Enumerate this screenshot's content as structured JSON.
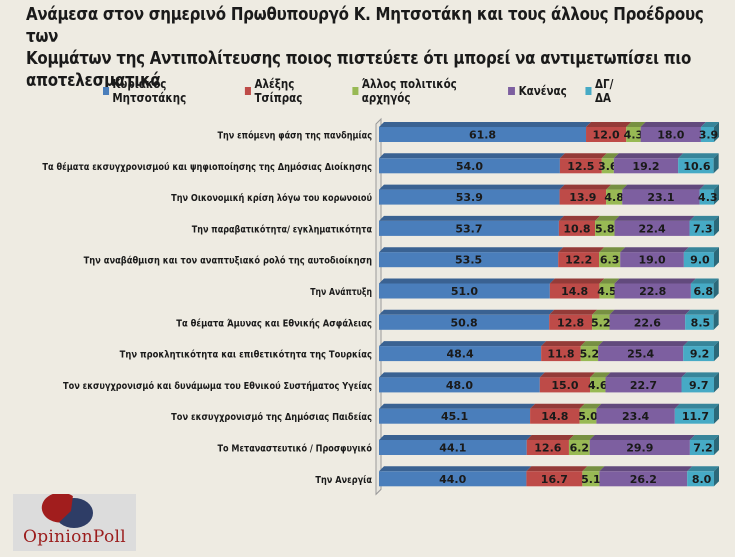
{
  "chart_data": {
    "type": "bar",
    "orientation": "horizontal",
    "stacked": true,
    "percent_stacked": true,
    "title": "Ανάμεσα στον σημερινό Πρωθυπουργό Κ. Μητσοτάκη και τους άλλους Προέδρους των Κομμάτων της Αντιπολίτευσης  ποιος πιστεύετε ότι μπορεί να αντιμετωπίσει πιο αποτελεσματικά",
    "title_lines": [
      "Ανάμεσα στον σημερινό Πρωθυπουργό Κ. Μητσοτάκη και τους άλλους Προέδρους των",
      "Κομμάτων της Αντιπολίτευσης  ποιος πιστεύετε ότι μπορεί να αντιμετωπίσει πιο",
      "αποτελεσματικά"
    ],
    "xlabel": "",
    "ylabel": "",
    "xlim": [
      0,
      100
    ],
    "grid": false,
    "legend_position": "top",
    "categories": [
      "Την επόμενη φάση της πανδημίας",
      "Τα θέματα εκσυγχρονισμού και ψηφιοποίησης της Δημόσιας Διοίκησης",
      "Την Οικονομική κρίση λόγω του κορωνοιού",
      "Την παραβατικότητα/ εγκληματικότητα",
      "Την αναβάθμιση και τον αναπτυξιακό ρολό της αυτοδιοίκηση",
      "Την Ανάπτυξη",
      "Τα θέματα Άμυνας και Εθνικής Ασφάλειας",
      "Την προκλητικότητα και επιθετικότητα της Τουρκίας",
      "Τον εκσυγχρονισμό και δυνάμωμα του Εθνικού Συστήματος Υγείας",
      "Τον εκσυγχρονισμό της Δημόσιας Παιδείας",
      "Το Μεταναστευτικό / Προσφυγικό",
      "Την Ανεργία"
    ],
    "series": [
      {
        "name": "Κυριάκος Μητσοτάκης",
        "color": "#4a7ebb",
        "values": [
          61.8,
          54.0,
          53.9,
          53.7,
          53.5,
          51.0,
          50.8,
          48.4,
          48.0,
          45.1,
          44.1,
          44.0
        ]
      },
      {
        "name": "Αλέξης Τσίπρας",
        "color": "#be4b48",
        "values": [
          12.0,
          12.5,
          13.9,
          10.8,
          12.2,
          14.8,
          12.8,
          11.8,
          15.0,
          14.8,
          12.6,
          16.7
        ]
      },
      {
        "name": "Άλλος πολιτικός αρχηγός",
        "color": "#98b954",
        "values": [
          4.3,
          3.6,
          4.8,
          5.8,
          6.3,
          4.5,
          5.2,
          5.2,
          4.6,
          5.0,
          6.2,
          5.1
        ]
      },
      {
        "name": "Κανένας",
        "color": "#7d5fa0",
        "values": [
          18.0,
          19.2,
          23.1,
          22.4,
          19.0,
          22.8,
          22.6,
          25.4,
          22.7,
          23.4,
          29.9,
          26.2
        ]
      },
      {
        "name": "ΔΓ/ ΔΑ",
        "color": "#46aac5",
        "values": [
          3.9,
          10.6,
          4.3,
          7.3,
          9.0,
          6.8,
          8.5,
          9.2,
          9.7,
          11.7,
          7.2,
          8.0
        ]
      }
    ]
  },
  "logo": {
    "text": "OpinionPoll",
    "pie_colors": {
      "major": "#2e3d66",
      "minor": "#a11d1d"
    }
  }
}
